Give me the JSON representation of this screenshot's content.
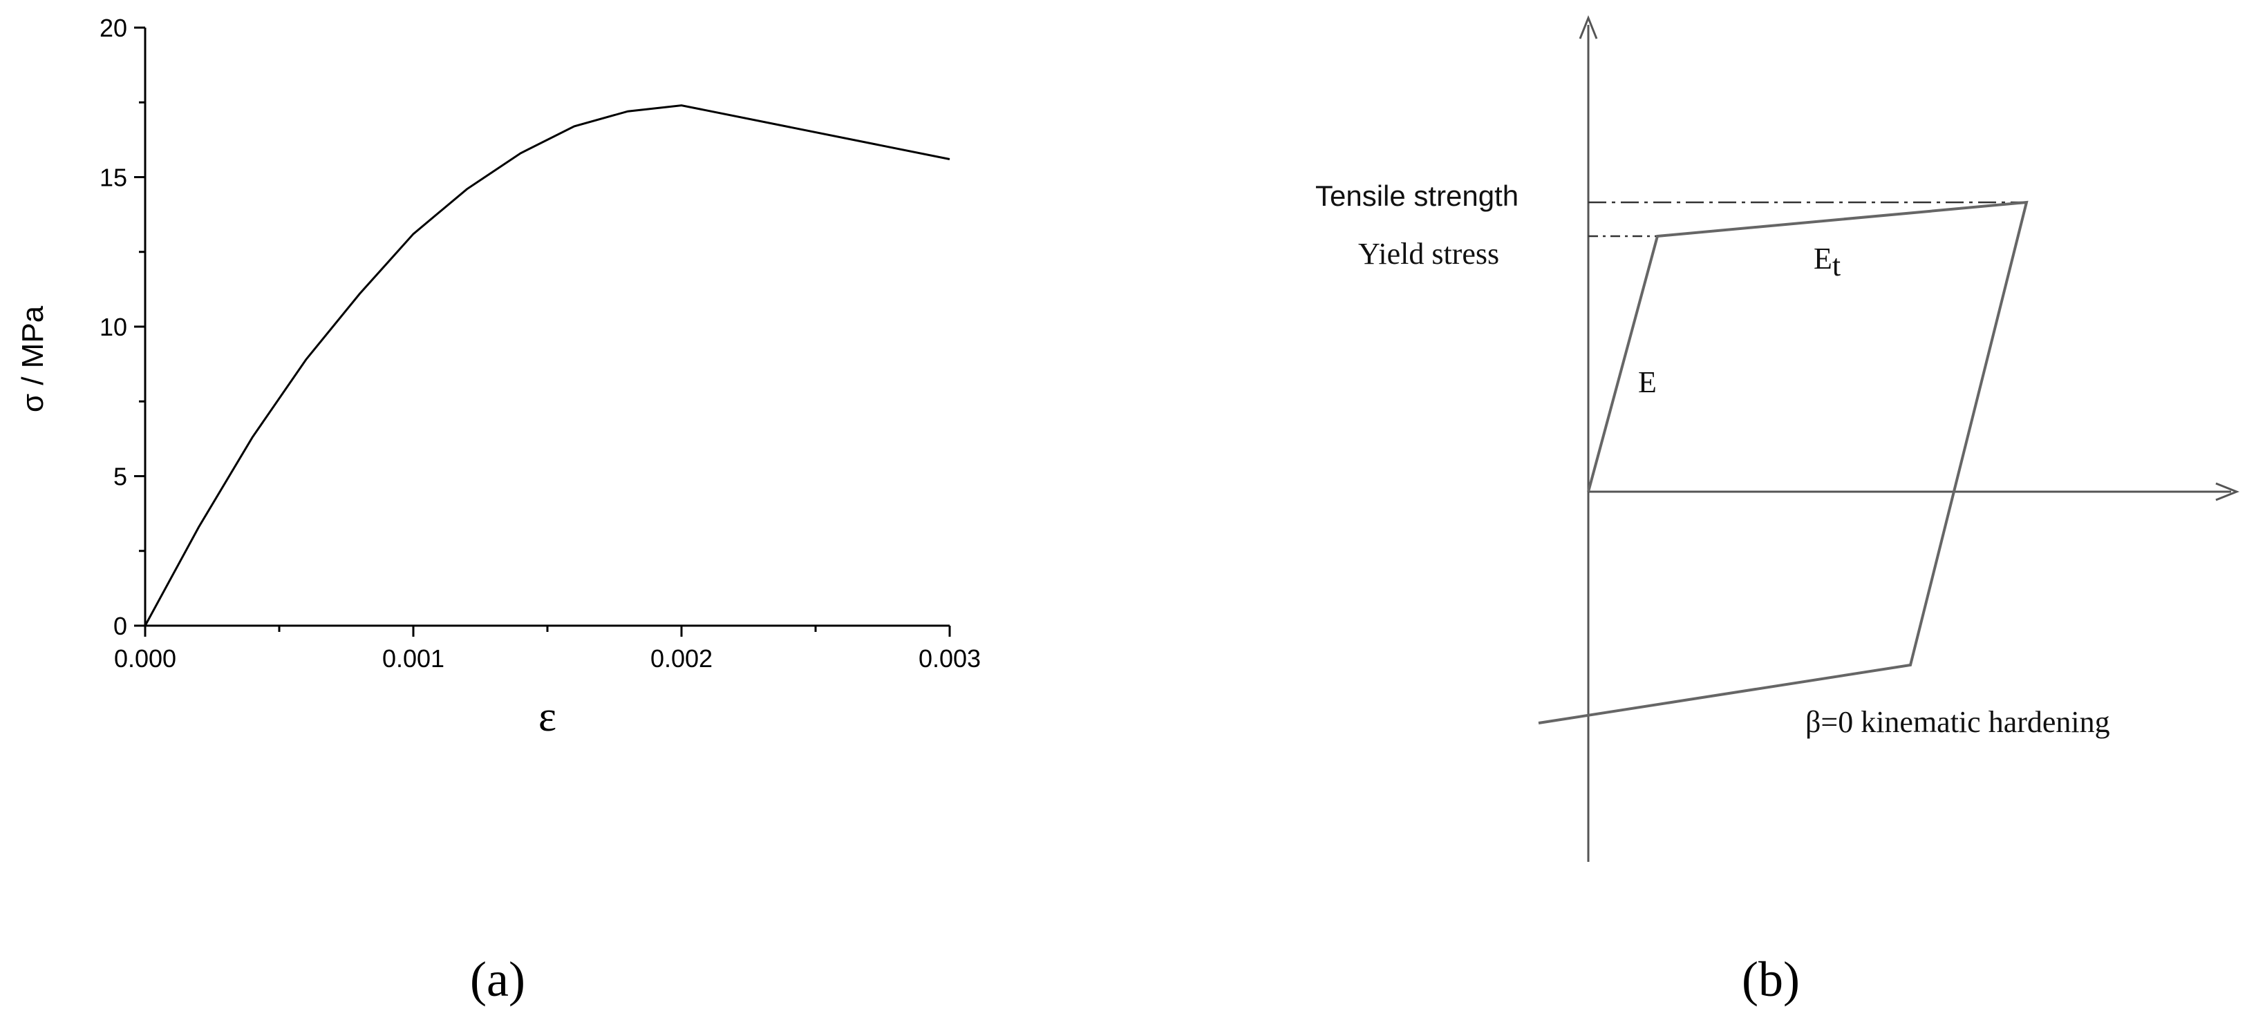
{
  "chart_data": [
    {
      "type": "line",
      "title": "",
      "xlabel": "ε",
      "ylabel": "σ / MPa",
      "xlim": [
        0,
        0.003
      ],
      "ylim": [
        0,
        20
      ],
      "x_ticks": [
        "0.000",
        "0.001",
        "0.002",
        "0.003"
      ],
      "y_ticks": [
        "0",
        "5",
        "10",
        "15",
        "20"
      ],
      "x_values": [
        0,
        0.0002,
        0.0004,
        0.0006,
        0.0008,
        0.001,
        0.0012,
        0.0014,
        0.0016,
        0.0018,
        0.002,
        0.003
      ],
      "y_values": [
        0,
        3.3,
        6.3,
        8.9,
        11.1,
        13.1,
        14.6,
        15.8,
        16.7,
        17.2,
        17.4,
        15.6
      ],
      "grid": false,
      "caption": "(a)"
    }
  ],
  "diagram": {
    "labels": {
      "tensile_strength": "Tensile strength",
      "yield_stress": "Yield stress",
      "e": "E",
      "et_main": "E",
      "et_sub": "t",
      "hardening": "β=0 kinematic hardening"
    },
    "caption": "(b)"
  }
}
